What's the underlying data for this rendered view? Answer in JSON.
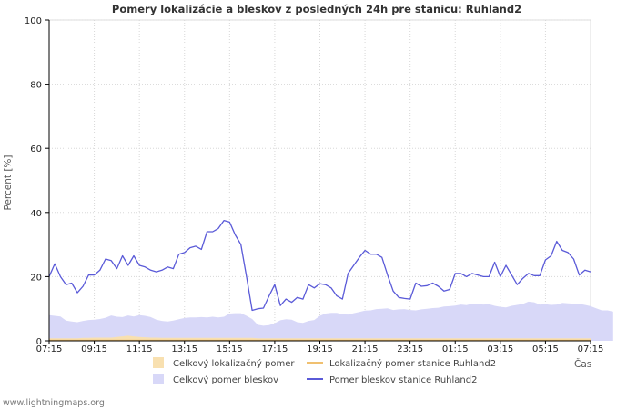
{
  "chart_data": {
    "type": "area",
    "title": "Pomery lokalizácie a bleskov z posledných 24h pre stanicu: Ruhland2",
    "ylabel": "Percent   [%]",
    "xlabel": "Čas",
    "ylim": [
      0,
      100
    ],
    "yticks": [
      0,
      20,
      40,
      60,
      80,
      100
    ],
    "xlim": [
      0,
      96
    ],
    "xticks": [
      {
        "i": 0,
        "label": "07:15"
      },
      {
        "i": 8,
        "label": "09:15"
      },
      {
        "i": 16,
        "label": "11:15"
      },
      {
        "i": 24,
        "label": "13:15"
      },
      {
        "i": 32,
        "label": "15:15"
      },
      {
        "i": 40,
        "label": "17:15"
      },
      {
        "i": 48,
        "label": "19:15"
      },
      {
        "i": 56,
        "label": "21:15"
      },
      {
        "i": 64,
        "label": "23:15"
      },
      {
        "i": 72,
        "label": "01:15"
      },
      {
        "i": 80,
        "label": "03:15"
      },
      {
        "i": 88,
        "label": "05:15"
      },
      {
        "i": 96,
        "label": "07:15"
      }
    ],
    "x_interval_minutes": 15,
    "series": [
      {
        "name": "Celkový pomer bleskov",
        "kind": "area",
        "color": "#d8d8f8",
        "values": [
          8,
          7.8,
          7.6,
          6.3,
          6,
          5.8,
          6.2,
          6.5,
          6.6,
          6.8,
          7.2,
          7.9,
          7.5,
          7.4,
          7.9,
          7.6,
          8,
          7.8,
          7.4,
          6.6,
          6.2,
          6,
          6.3,
          6.7,
          7.1,
          7.3,
          7.3,
          7.4,
          7.3,
          7.5,
          7.3,
          7.5,
          8.5,
          8.6,
          8.6,
          7.8,
          6.8,
          5,
          4.7,
          4.9,
          5.5,
          6.4,
          6.7,
          6.6,
          5.8,
          5.6,
          6.2,
          6.5,
          7.8,
          8.5,
          8.7,
          8.7,
          8.3,
          8.2,
          8.6,
          9,
          9.4,
          9.5,
          9.9,
          10,
          10.1,
          9.6,
          9.8,
          9.9,
          9.6,
          9.5,
          9.8,
          10,
          10.2,
          10.3,
          10.7,
          10.8,
          11,
          11.3,
          11.1,
          11.6,
          11.4,
          11.3,
          11.4,
          10.9,
          10.6,
          10.4,
          10.9,
          11.2,
          11.5,
          12.2,
          12,
          11.3,
          11.4,
          11.2,
          11.3,
          11.8,
          11.7,
          11.6,
          11.5,
          11.2,
          10.8,
          10.1,
          9.5,
          9.5,
          9.1
        ]
      },
      {
        "name": "Celkový lokalizačný pomer",
        "kind": "area",
        "color": "#f8e0b0",
        "values": [
          0.8,
          0.8,
          0.8,
          0.8,
          0.8,
          0.8,
          0.9,
          0.9,
          1,
          1,
          1,
          1,
          1.2,
          1.4,
          1.6,
          1.4,
          1.2,
          1.1,
          1,
          1,
          0.9,
          0.9,
          0.9,
          0.9,
          0.9,
          0.9,
          0.9,
          0.9,
          0.9,
          0.9,
          0.9,
          0.9,
          0.9,
          0.9,
          0.9,
          0.9,
          0.9,
          0.8,
          0.8,
          0.8,
          0.8,
          0.8,
          0.8,
          0.8,
          0.8,
          0.8,
          0.8,
          0.8,
          0.8,
          0.8,
          0.8,
          0.8,
          0.8,
          0.8,
          0.8,
          0.8,
          0.8,
          0.8,
          0.8,
          0.8,
          0.8,
          0.8,
          0.8,
          0.8,
          0.8,
          0.8,
          0.8,
          0.8,
          0.8,
          0.8,
          0.8,
          0.8,
          0.8,
          0.8,
          0.8,
          0.8,
          0.8,
          0.8,
          0.8,
          0.8,
          0.8,
          0.8,
          0.8,
          0.8,
          0.8,
          0.8,
          0.8,
          0.8,
          0.8,
          0.8,
          0.8,
          0.8,
          0.8,
          0.8,
          0.8,
          0.8,
          0.8
        ]
      },
      {
        "name": "Lokalizačný pomer stanice Ruhland2",
        "kind": "line",
        "color": "#f0c070",
        "values": [
          0.2,
          0.2,
          0.2,
          0.2,
          0.2,
          0.2,
          0.2,
          0.2,
          0.2,
          0.2,
          0.2,
          0.2,
          0.2,
          0.2,
          0.2,
          0.2,
          0.2,
          0.2,
          0.2,
          0.2,
          0.2,
          0.2,
          0.2,
          0.2,
          0.2,
          0.2,
          0.2,
          0.2,
          0.2,
          0.2,
          0.2,
          0.2,
          0.2,
          0.2,
          0.2,
          0.2,
          0.2,
          0.2,
          0.2,
          0.2,
          0.2,
          0.2,
          0.2,
          0.2,
          0.2,
          0.2,
          0.2,
          0.2,
          0.2,
          0.2,
          0.2,
          0.2,
          0.2,
          0.2,
          0.2,
          0.2,
          0.2,
          0.2,
          0.2,
          0.2,
          0.2,
          0.2,
          0.2,
          0.2,
          0.2,
          0.2,
          0.2,
          0.2,
          0.2,
          0.2,
          0.2,
          0.2,
          0.2,
          0.2,
          0.2,
          0.2,
          0.2,
          0.2,
          0.2,
          0.2,
          0.2,
          0.2,
          0.2,
          0.2,
          0.2,
          0.2,
          0.2,
          0.2,
          0.2,
          0.2,
          0.2,
          0.2,
          0.2,
          0.2,
          0.2,
          0.2,
          0.2
        ]
      },
      {
        "name": "Pomer bleskov stanice Ruhland2",
        "kind": "line",
        "color": "#5a5ad8",
        "values": [
          20,
          24,
          20,
          17.5,
          18,
          15,
          17,
          20.5,
          20.5,
          22,
          25.5,
          25,
          22.5,
          26.5,
          23.5,
          26.5,
          23.5,
          23,
          22,
          21.5,
          22,
          23,
          22.5,
          27,
          27.5,
          29,
          29.5,
          28.5,
          34,
          34,
          35,
          37.5,
          37,
          33,
          30,
          20,
          9.5,
          10,
          10.2,
          14,
          17.5,
          11,
          13,
          12,
          13.5,
          13,
          17.5,
          16.5,
          17.8,
          17.5,
          16.5,
          14,
          13,
          21,
          23.5,
          26,
          28.2,
          27,
          27,
          26,
          20.5,
          15.5,
          13.5,
          13.2,
          13,
          18,
          17,
          17.2,
          18,
          17,
          15.5,
          16,
          21,
          21,
          20,
          21,
          20.5,
          20,
          20,
          24.5,
          20,
          23.5,
          20.5,
          17.5,
          19.5,
          21,
          20.3,
          20.3,
          25.2,
          26.5,
          31,
          28.2,
          27.5,
          25.5,
          20.5,
          22,
          21.5
        ]
      }
    ]
  },
  "legend": [
    {
      "label": "Celkový lokalizačný pomer",
      "kind": "box",
      "color": "#f8e0b0"
    },
    {
      "label": "Lokalizačný pomer stanice Ruhland2",
      "kind": "line",
      "color": "#f0c070"
    },
    {
      "label": "Celkový pomer bleskov",
      "kind": "box",
      "color": "#d8d8f8"
    },
    {
      "label": "Pomer bleskov stanice Ruhland2",
      "kind": "line",
      "color": "#5a5ad8"
    }
  ],
  "credit": "www.lightningmaps.org"
}
